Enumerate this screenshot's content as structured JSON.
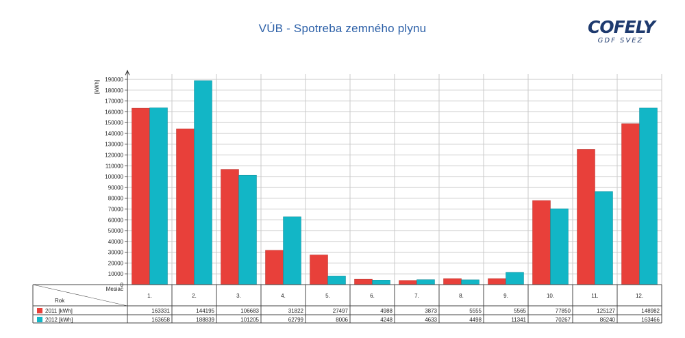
{
  "title": "VÚB - Spotreba zemného plynu",
  "logo": {
    "main": "COFELY",
    "sub": "GDF SVEZ"
  },
  "colors": {
    "series2011": "#e8403a",
    "series2012": "#12b6c6",
    "grid": "#c9c9c9",
    "title": "#2b5fa7"
  },
  "chart_data": {
    "type": "bar",
    "title": "VÚB - Spotreba zemného plynu",
    "ylabel": "[kWh]",
    "ylim": [
      0,
      190000
    ],
    "yticks": [
      0,
      10000,
      20000,
      30000,
      40000,
      50000,
      60000,
      70000,
      80000,
      90000,
      100000,
      110000,
      120000,
      130000,
      140000,
      150000,
      160000,
      170000,
      180000,
      190000
    ],
    "categories": [
      "1.",
      "2.",
      "3.",
      "4.",
      "5.",
      "6.",
      "7.",
      "8.",
      "9.",
      "10.",
      "11.",
      "12."
    ],
    "table_header": {
      "row_label": "Mesiac",
      "col_label": "Rok"
    },
    "grid": true,
    "series": [
      {
        "name": "2011 [kWh]",
        "values": [
          163331,
          144195,
          106683,
          31822,
          27497,
          4988,
          3873,
          5555,
          5565,
          77850,
          125127,
          148982
        ]
      },
      {
        "name": "2012 [kWh]",
        "values": [
          163658,
          188839,
          101205,
          62799,
          8006,
          4248,
          4633,
          4498,
          11341,
          70267,
          86240,
          163466
        ]
      }
    ]
  }
}
